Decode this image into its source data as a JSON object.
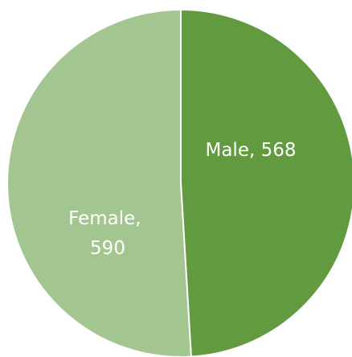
{
  "chart_data": {
    "type": "pie",
    "slices": [
      {
        "label": "Male",
        "value": 568,
        "color": "#629b3f",
        "text": "Male, 568"
      },
      {
        "label": "Female",
        "value": 590,
        "color": "#a3c590",
        "text_lines": [
          "Female,",
          "590"
        ]
      }
    ],
    "start_angle_deg": 0,
    "direction": "clockwise",
    "legend": "none"
  }
}
